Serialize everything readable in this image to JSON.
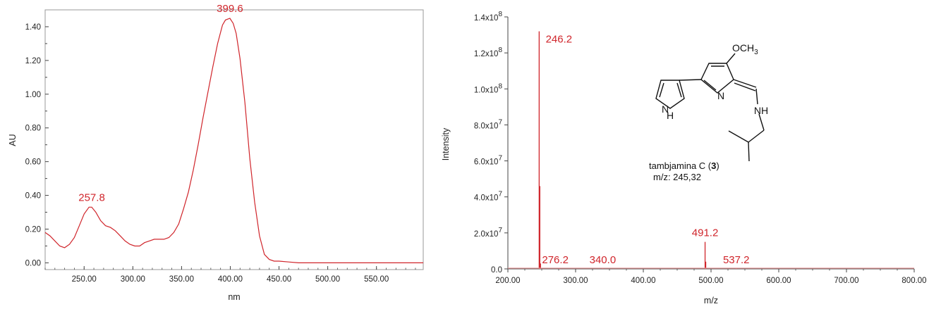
{
  "chart_data": [
    {
      "type": "line",
      "xlabel": "nm",
      "ylabel": "AU",
      "xlim": [
        210,
        598
      ],
      "ylim": [
        -0.04,
        1.5
      ],
      "x_ticks": [
        "250.00",
        "300.00",
        "350.00",
        "400.00",
        "450.00",
        "500.00",
        "550.00"
      ],
      "y_ticks": [
        "0.00",
        "0.20",
        "0.40",
        "0.60",
        "0.80",
        "1.00",
        "1.20",
        "1.40"
      ],
      "series": [
        {
          "x": [
            210,
            215,
            220,
            225,
            230,
            235,
            240,
            245,
            250,
            255,
            257.8,
            262,
            267,
            272,
            277,
            282,
            287,
            292,
            297,
            302,
            307,
            312,
            317,
            322,
            327,
            332,
            337,
            342,
            347,
            352,
            357,
            362,
            367,
            372,
            377,
            382,
            387,
            392,
            395,
            399.6,
            403,
            406,
            410,
            415,
            420,
            425,
            430,
            435,
            440,
            445,
            450,
            460,
            470,
            480,
            490,
            500,
            520,
            540,
            560,
            580,
            598
          ],
          "y": [
            0.18,
            0.16,
            0.13,
            0.1,
            0.09,
            0.11,
            0.15,
            0.22,
            0.29,
            0.33,
            0.33,
            0.3,
            0.25,
            0.22,
            0.21,
            0.19,
            0.16,
            0.13,
            0.11,
            0.1,
            0.1,
            0.12,
            0.13,
            0.14,
            0.14,
            0.14,
            0.15,
            0.18,
            0.23,
            0.32,
            0.42,
            0.55,
            0.7,
            0.86,
            1.01,
            1.16,
            1.3,
            1.41,
            1.44,
            1.45,
            1.42,
            1.36,
            1.21,
            0.95,
            0.62,
            0.36,
            0.16,
            0.05,
            0.02,
            0.01,
            0.01,
            0.005,
            0.0,
            0.0,
            0.0,
            0.0,
            0.0,
            0.0,
            0.0,
            0.0,
            0.0
          ]
        }
      ],
      "annotations": [
        {
          "text": "257.8",
          "x": 257.8,
          "y": 0.33
        },
        {
          "text": "399.6",
          "x": 399.6,
          "y": 1.45
        }
      ]
    },
    {
      "type": "bar",
      "xlabel": "m/z",
      "ylabel": "Intensity",
      "xlim": [
        200,
        800
      ],
      "ylim": [
        0,
        140000000
      ],
      "x_ticks": [
        "200.00",
        "300.00",
        "400.00",
        "500.00",
        "600.00",
        "700.00",
        "800.00"
      ],
      "y_ticks": [
        {
          "mant": "0.0",
          "exp": ""
        },
        {
          "mant": "2.0x10",
          "exp": "7"
        },
        {
          "mant": "4.0x10",
          "exp": "7"
        },
        {
          "mant": "6.0x10",
          "exp": "7"
        },
        {
          "mant": "8.0x10",
          "exp": "7"
        },
        {
          "mant": "1.0x10",
          "exp": "8"
        },
        {
          "mant": "1.2x10",
          "exp": "8"
        },
        {
          "mant": "1.4x10",
          "exp": "8"
        }
      ],
      "peaks": [
        {
          "mz": 246.2,
          "intensity": 132000000
        },
        {
          "mz": 247.2,
          "intensity": 46000000
        },
        {
          "mz": 248.2,
          "intensity": 3000000
        },
        {
          "mz": 276.2,
          "intensity": 500000
        },
        {
          "mz": 340.0,
          "intensity": 300000
        },
        {
          "mz": 491.2,
          "intensity": 15000000
        },
        {
          "mz": 492.2,
          "intensity": 4000000
        },
        {
          "mz": 537.2,
          "intensity": 300000
        }
      ],
      "annotations": [
        {
          "text": "246.2",
          "x": 246.2
        },
        {
          "text": "276.2",
          "x": 276.2
        },
        {
          "text": "340.0",
          "x": 340.0
        },
        {
          "text": "491.2",
          "x": 491.2
        },
        {
          "text": "537.2",
          "x": 537.2
        }
      ],
      "inset": {
        "atoms": {
          "methoxy": "OCH",
          "methoxy_sub": "3",
          "n": "N",
          "h": "H",
          "nh": "NH"
        },
        "caption_name": "tambjamina C (",
        "caption_num": "3",
        "caption_close": ")",
        "caption_mz": "m/z: 245,32"
      }
    }
  ]
}
